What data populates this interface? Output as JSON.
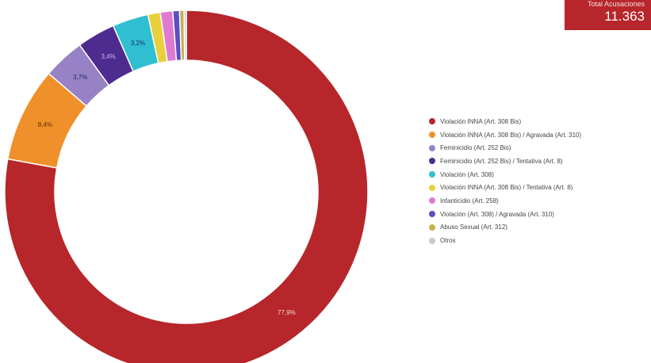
{
  "kpi": {
    "label": "Total Acusaciones",
    "value": "11.363"
  },
  "chart_data": {
    "type": "pie",
    "donut": true,
    "title": "",
    "legend_position": "right",
    "series": [
      {
        "name": "Violación INNA (Art. 308 Bis)",
        "value": 77.9,
        "label": "77,9%",
        "color": "#b7262a"
      },
      {
        "name": "Violación INNA (Art. 308 Bis) / Agravada (Art. 310)",
        "value": 8.4,
        "label": "8,4%",
        "color": "#f0902a"
      },
      {
        "name": "Feminicidio (Art. 252 Bis)",
        "value": 3.7,
        "label": "3,7%",
        "color": "#9682c4"
      },
      {
        "name": "Feminicidio (Art. 252 Bis) / Tentativa (Art. 8)",
        "value": 3.4,
        "label": "3,4%",
        "color": "#4e2c8f"
      },
      {
        "name": "Violación (Art. 308)",
        "value": 3.2,
        "label": "3,2%",
        "color": "#2fbfd1"
      },
      {
        "name": "Violación INNA (Art. 308 Bis) / Tentativa (Art. 8)",
        "value": 1.1,
        "label": "",
        "color": "#e8d03c"
      },
      {
        "name": "Infanticidio (Art. 258)",
        "value": 1.1,
        "label": "",
        "color": "#e07ad0"
      },
      {
        "name": "Violación (Art. 308) / Agravada (Art. 310)",
        "value": 0.6,
        "label": "",
        "color": "#5b4fc2"
      },
      {
        "name": "Abuso Sexual (Art. 312)",
        "value": 0.4,
        "label": "",
        "color": "#c9b050"
      },
      {
        "name": "Otros",
        "value": 0.2,
        "label": "",
        "color": "#c8c8c8"
      }
    ]
  }
}
